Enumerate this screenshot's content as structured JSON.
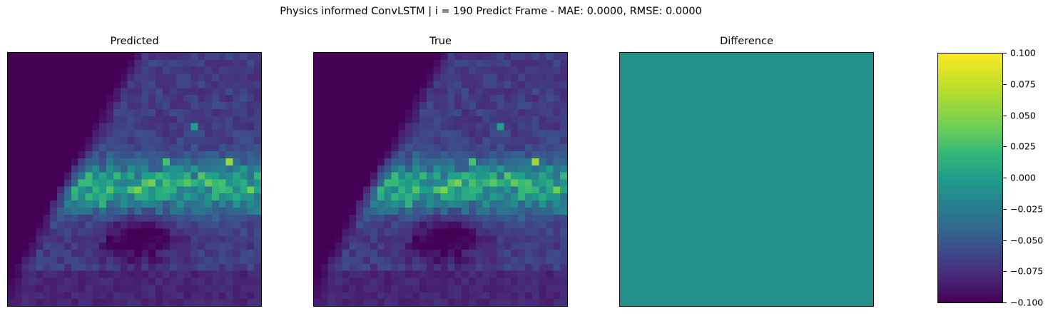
{
  "suptitle": "Physics informed ConvLSTM | i = 190 Predict Frame - MAE: 0.0000, RMSE: 0.0000",
  "chart_data": [
    {
      "type": "heatmap",
      "title": "Predicted",
      "grid_size": [
        36,
        36
      ],
      "colormap": "viridis",
      "xticks": [],
      "yticks": [],
      "field": "visually identical to True (difference is zero everywhere); background low values in upper-left, brighter cluster band across rows ~15-22, dark hole at lower-middle"
    },
    {
      "type": "heatmap",
      "title": "True",
      "grid_size": [
        36,
        36
      ],
      "colormap": "viridis",
      "xticks": [],
      "yticks": [],
      "field": "same field as Predicted"
    },
    {
      "type": "heatmap",
      "title": "Difference",
      "colormap": "viridis",
      "uniform_value": 0.0,
      "xticks": [],
      "yticks": []
    }
  ],
  "colorbar": {
    "colormap": "viridis",
    "range": [
      -0.1,
      0.1
    ],
    "tick_values": [
      0.1,
      0.075,
      0.05,
      0.025,
      0.0,
      -0.025,
      -0.05,
      -0.075,
      -0.1
    ],
    "tick_labels": [
      "0.100",
      "0.075",
      "0.050",
      "0.025",
      "0.000",
      "−0.025",
      "−0.050",
      "−0.075",
      "−0.100"
    ]
  },
  "colors": {
    "viridis_low": "#440154",
    "viridis_mid": "#21918c",
    "viridis_high": "#fde725"
  }
}
